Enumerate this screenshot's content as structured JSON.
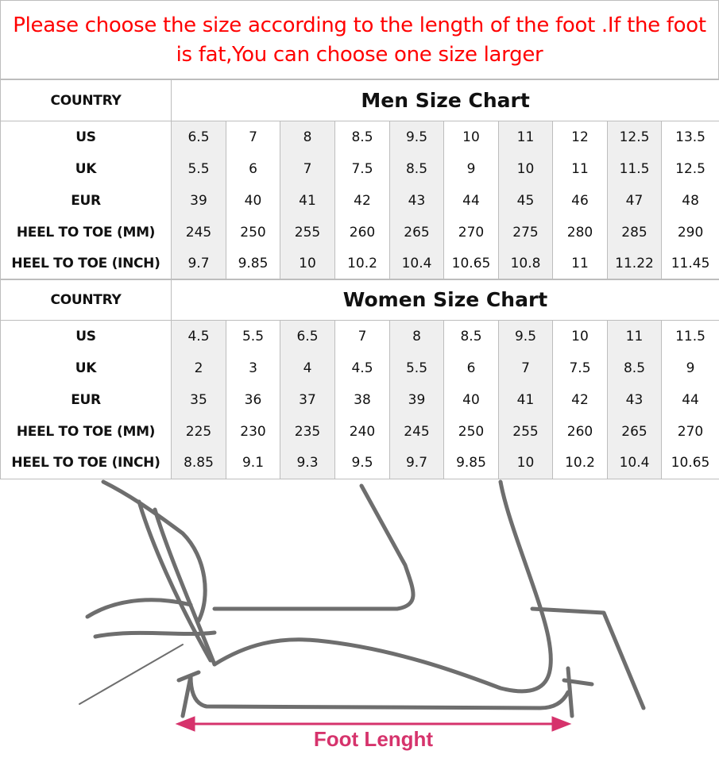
{
  "notice": {
    "line1": "Please choose the size according to the length of the foot .If the foot",
    "line2": "is fat,You can choose one size larger"
  },
  "row_labels": [
    "US",
    "UK",
    "EUR",
    "HEEL TO TOE (MM)",
    "HEEL TO TOE (INCH)"
  ],
  "men": {
    "country_label": "COUNTRY",
    "title": "Men Size Chart",
    "rows": [
      [
        "6.5",
        "7",
        "8",
        "8.5",
        "9.5",
        "10",
        "11",
        "12",
        "12.5",
        "13.5"
      ],
      [
        "5.5",
        "6",
        "7",
        "7.5",
        "8.5",
        "9",
        "10",
        "11",
        "11.5",
        "12.5"
      ],
      [
        "39",
        "40",
        "41",
        "42",
        "43",
        "44",
        "45",
        "46",
        "47",
        "48"
      ],
      [
        "245",
        "250",
        "255",
        "260",
        "265",
        "270",
        "275",
        "280",
        "285",
        "290"
      ],
      [
        "9.7",
        "9.85",
        "10",
        "10.2",
        "10.4",
        "10.65",
        "10.8",
        "11",
        "11.22",
        "11.45"
      ]
    ]
  },
  "women": {
    "country_label": "COUNTRY",
    "title": "Women Size Chart",
    "rows": [
      [
        "4.5",
        "5.5",
        "6.5",
        "7",
        "8",
        "8.5",
        "9.5",
        "10",
        "11",
        "11.5"
      ],
      [
        "2",
        "3",
        "4",
        "4.5",
        "5.5",
        "6",
        "7",
        "7.5",
        "8.5",
        "9"
      ],
      [
        "35",
        "36",
        "37",
        "38",
        "39",
        "40",
        "41",
        "42",
        "43",
        "44"
      ],
      [
        "225",
        "230",
        "235",
        "240",
        "245",
        "250",
        "255",
        "260",
        "265",
        "270"
      ],
      [
        "8.85",
        "9.1",
        "9.3",
        "9.5",
        "9.7",
        "9.85",
        "10",
        "10.2",
        "10.4",
        "10.65"
      ]
    ]
  },
  "illustration": {
    "caption": "Foot Lenght",
    "accent": "#d6336c"
  },
  "colors": {
    "notice": "#ff0000",
    "shade": "#efefef"
  }
}
